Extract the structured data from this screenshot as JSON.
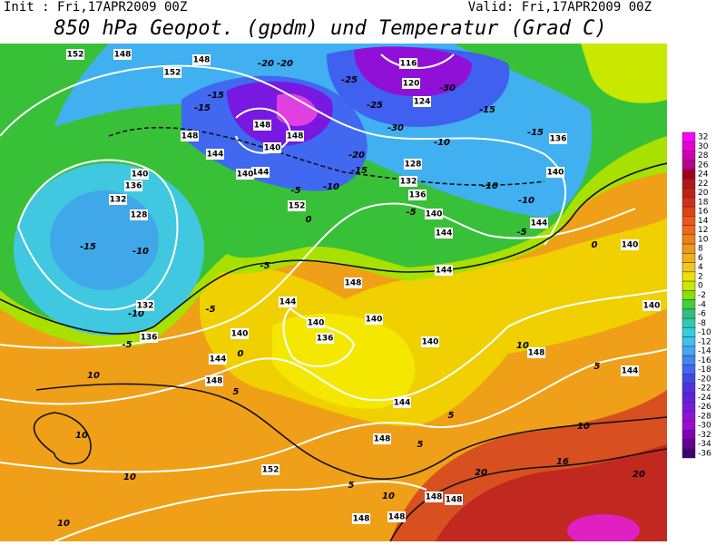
{
  "header": {
    "init": "Init : Fri,17APR2009 00Z",
    "valid": "Valid: Fri,17APR2009 00Z",
    "title": "850 hPa Geopot. (gpdm) und Temperatur (Grad C)"
  },
  "colorbar": {
    "ticks": [
      32,
      30,
      28,
      26,
      24,
      22,
      20,
      18,
      16,
      14,
      12,
      10,
      8,
      6,
      4,
      2,
      0,
      -2,
      -4,
      -6,
      -8,
      -10,
      -12,
      -14,
      -16,
      -18,
      -20,
      -22,
      -24,
      -26,
      -28,
      -30,
      -32,
      -34,
      -36
    ],
    "colors": [
      "#ff00ff",
      "#e800d8",
      "#d000b0",
      "#b80090",
      "#a00020",
      "#b01818",
      "#c02018",
      "#d03018",
      "#e04018",
      "#e85818",
      "#f06818",
      "#f08018",
      "#f09818",
      "#f0b018",
      "#f0c818",
      "#f0e000",
      "#c8e800",
      "#88e000",
      "#40d040",
      "#30c080",
      "#30c8b0",
      "#30d0e0",
      "#40c0f0",
      "#40a8f0",
      "#4088f0",
      "#4068f0",
      "#4048e8",
      "#5030e0",
      "#6020e0",
      "#7818e0",
      "#9010d8",
      "#a008d0",
      "#8000b0",
      "#600090",
      "#400070"
    ]
  },
  "contour_labels": [
    "152",
    "148",
    "152",
    "148",
    "-20",
    "-20",
    "116",
    "120",
    "-25",
    "-30",
    "124",
    "-25",
    "-15",
    "-30",
    "-15",
    "136",
    "-10",
    "-20",
    "-15",
    "128",
    "132",
    "140",
    "-10",
    "-10",
    "136",
    "-5",
    "140",
    "144",
    "-5",
    "144",
    "0",
    "140",
    "144",
    "140",
    "140",
    "148",
    "144",
    "-5",
    "140",
    "136",
    "140",
    "140",
    "-5",
    "-10",
    "132",
    "136",
    "-15",
    "-10",
    "128",
    "132",
    "136",
    "140",
    "144",
    "148",
    "-15",
    "-15",
    "148",
    "148",
    "140",
    "144",
    "140",
    "-5",
    "-10",
    "152",
    "0",
    "10",
    "10",
    "10",
    "10",
    "-5",
    "0",
    "144",
    "148",
    "5",
    "144",
    "148",
    "5",
    "5",
    "152",
    "5",
    "10",
    "148",
    "148",
    "148",
    "148",
    "20",
    "16",
    "10",
    "20",
    "148",
    "10",
    "5",
    "144"
  ]
}
